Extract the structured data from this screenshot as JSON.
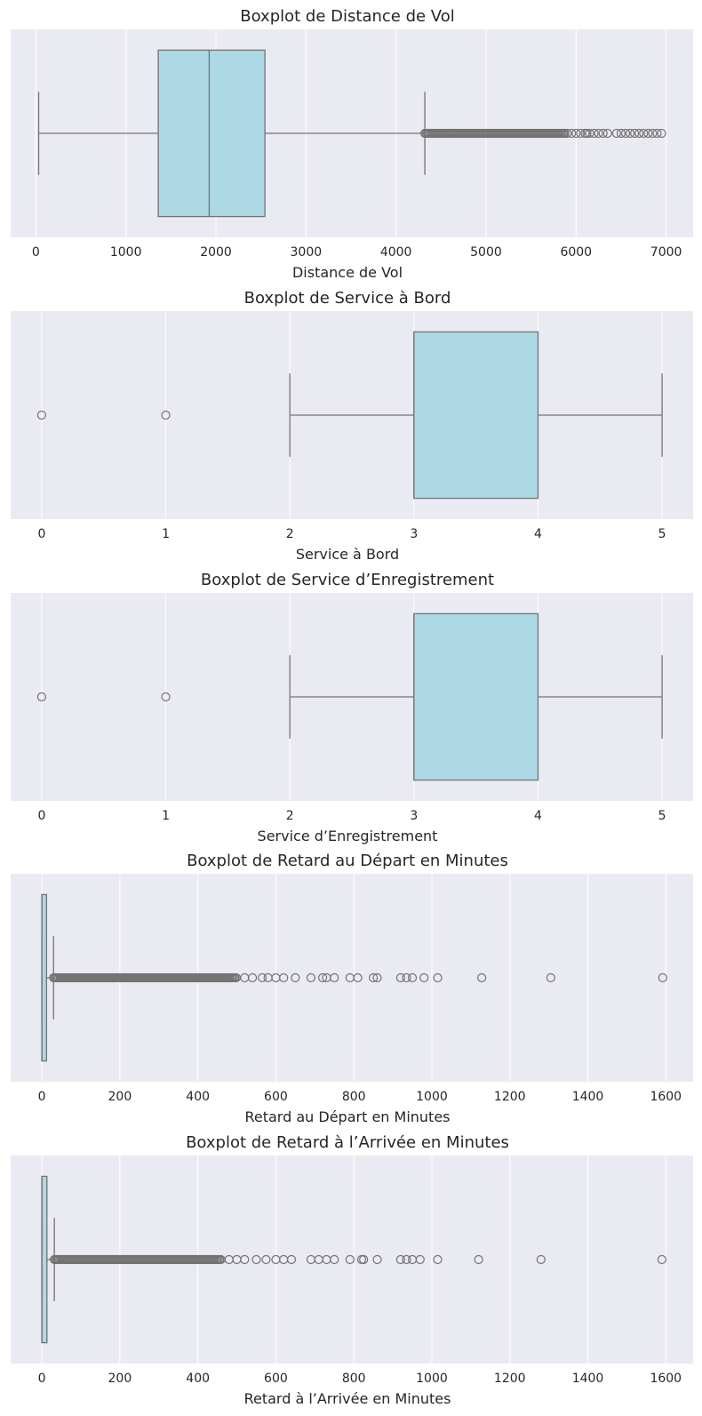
{
  "colors": {
    "panel_bg": "#eaeaf2",
    "grid": "#ffffff",
    "box_fill": "#add8e6",
    "box_edge": "#737373",
    "text": "#262626"
  },
  "chart_data": [
    {
      "type": "boxplot",
      "title": "Boxplot de Distance de Vol",
      "xlabel": "Distance de Vol",
      "xlim": [
        -280,
        7300
      ],
      "xticks": [
        0,
        1000,
        2000,
        3000,
        4000,
        5000,
        6000,
        7000
      ],
      "tick_labels": [
        "0",
        "1000",
        "2000",
        "3000",
        "4000",
        "5000",
        "6000",
        "7000"
      ],
      "grid": true,
      "box": {
        "min": 31,
        "q1": 1359,
        "median": 1925,
        "q3": 2544,
        "max": 4320
      },
      "outliers_dense_range": [
        4320,
        5880
      ],
      "outliers": [
        5900,
        5950,
        6000,
        6050,
        6100,
        6120,
        6150,
        6200,
        6250,
        6300,
        6350,
        6450,
        6500,
        6550,
        6600,
        6650,
        6700,
        6750,
        6800,
        6850,
        6900,
        6950
      ]
    },
    {
      "type": "boxplot",
      "title": "Boxplot de Service à Bord",
      "xlabel": "Service à Bord",
      "xlim": [
        -0.25,
        5.25
      ],
      "xticks": [
        0,
        1,
        2,
        3,
        4,
        5
      ],
      "tick_labels": [
        "0",
        "1",
        "2",
        "3",
        "4",
        "5"
      ],
      "grid": true,
      "box": {
        "min": 2,
        "q1": 3,
        "median": 3,
        "q3": 4,
        "max": 5
      },
      "outliers": [
        0,
        1
      ]
    },
    {
      "type": "boxplot",
      "title": "Boxplot de Service d’Enregistrement",
      "xlabel": "Service d’Enregistrement",
      "xlim": [
        -0.25,
        5.25
      ],
      "xticks": [
        0,
        1,
        2,
        3,
        4,
        5
      ],
      "tick_labels": [
        "0",
        "1",
        "2",
        "3",
        "4",
        "5"
      ],
      "grid": true,
      "box": {
        "min": 2,
        "q1": 3,
        "median": 3,
        "q3": 4,
        "max": 5
      },
      "outliers": [
        0,
        1
      ]
    },
    {
      "type": "boxplot",
      "title": "Boxplot de Retard au Départ en Minutes",
      "xlabel": "Retard au Départ en Minutes",
      "xlim": [
        -80,
        1670
      ],
      "xticks": [
        0,
        200,
        400,
        600,
        800,
        1000,
        1200,
        1400,
        1600
      ],
      "tick_labels": [
        "0",
        "200",
        "400",
        "600",
        "800",
        "1000",
        "1200",
        "1400",
        "1600"
      ],
      "grid": true,
      "box": {
        "min": 0,
        "q1": 0,
        "median": 0,
        "q3": 12,
        "max": 30
      },
      "outliers_dense_range": [
        30,
        500
      ],
      "outliers": [
        520,
        540,
        565,
        580,
        600,
        620,
        650,
        690,
        720,
        730,
        750,
        790,
        810,
        850,
        860,
        920,
        935,
        950,
        980,
        1015,
        1128,
        1305,
        1592
      ]
    },
    {
      "type": "boxplot",
      "title": "Boxplot de Retard à l’Arrivée en Minutes",
      "xlabel": "Retard à l’Arrivée en Minutes",
      "xlim": [
        -80,
        1670
      ],
      "xticks": [
        0,
        200,
        400,
        600,
        800,
        1000,
        1200,
        1400,
        1600
      ],
      "tick_labels": [
        "0",
        "200",
        "400",
        "600",
        "800",
        "1000",
        "1200",
        "1400",
        "1600"
      ],
      "grid": true,
      "box": {
        "min": 0,
        "q1": 0,
        "median": 0,
        "q3": 13,
        "max": 32
      },
      "outliers_dense_range": [
        32,
        460
      ],
      "outliers": [
        480,
        500,
        520,
        550,
        575,
        600,
        620,
        640,
        690,
        710,
        730,
        750,
        790,
        820,
        825,
        860,
        920,
        935,
        950,
        970,
        1015,
        1120,
        1280,
        1590
      ]
    }
  ]
}
